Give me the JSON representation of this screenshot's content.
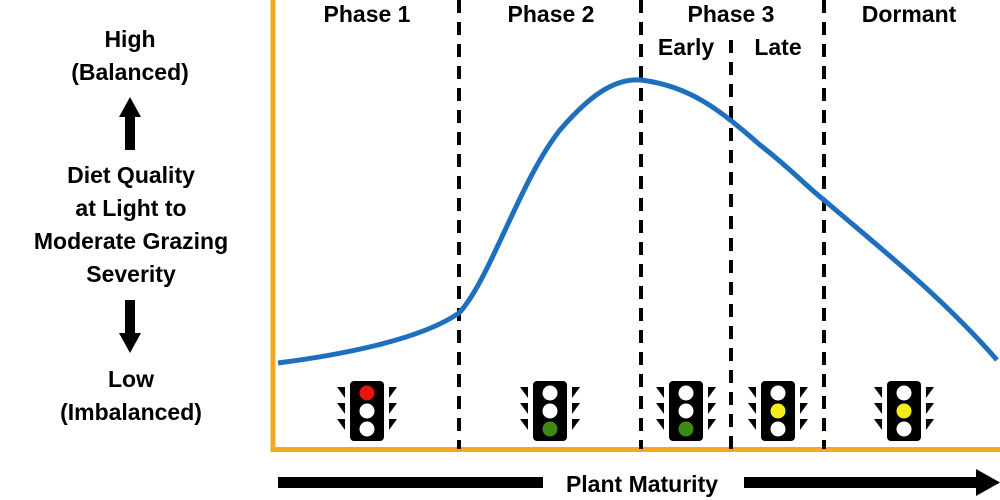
{
  "colors": {
    "axis": "#F5A623",
    "curve": "#1F6FBF",
    "divider": "#000000",
    "text": "#000000",
    "traffic_light_body": "#000000",
    "light_off": "#FFFFFF",
    "light_red": "#E8150C",
    "light_yellow": "#F5EE16",
    "light_green": "#3E8A12"
  },
  "y_axis": {
    "top_label_line1": "High",
    "top_label_line2": "(Balanced)",
    "title_lines": [
      "Diet Quality",
      "at Light to",
      "Moderate Grazing",
      "Severity"
    ],
    "bottom_label_line1": "Low",
    "bottom_label_line2": "(Imbalanced)",
    "arrow_icons": [
      "arrow-up-icon",
      "arrow-down-icon"
    ]
  },
  "x_axis": {
    "label": "Plant Maturity",
    "arrow_icon": "arrow-right-icon"
  },
  "phases": [
    {
      "label": "Phase 1",
      "light": "red",
      "icon": "traffic-light-icon"
    },
    {
      "label": "Phase 2",
      "light": "green",
      "icon": "traffic-light-icon"
    },
    {
      "label": "Phase 3",
      "sub_label": "Early",
      "light": "green",
      "icon": "traffic-light-icon"
    },
    {
      "sub_label": "Late",
      "light": "yellow",
      "icon": "traffic-light-icon"
    },
    {
      "label": "Dormant",
      "light": "yellow",
      "icon": "traffic-light-icon"
    }
  ],
  "diagram": {
    "curve_description_free": true
  }
}
